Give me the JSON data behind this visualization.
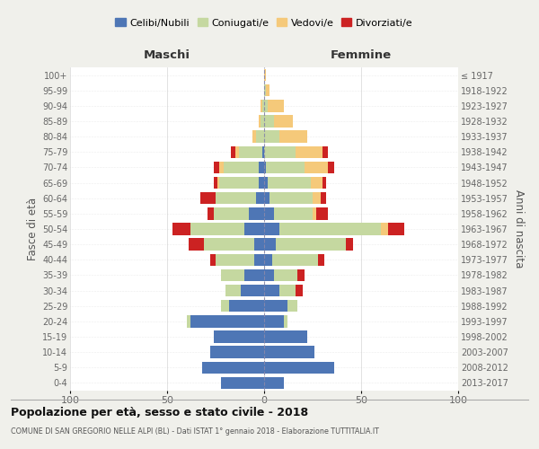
{
  "age_groups": [
    "0-4",
    "5-9",
    "10-14",
    "15-19",
    "20-24",
    "25-29",
    "30-34",
    "35-39",
    "40-44",
    "45-49",
    "50-54",
    "55-59",
    "60-64",
    "65-69",
    "70-74",
    "75-79",
    "80-84",
    "85-89",
    "90-94",
    "95-99",
    "100+"
  ],
  "birth_years": [
    "2013-2017",
    "2008-2012",
    "2003-2007",
    "1998-2002",
    "1993-1997",
    "1988-1992",
    "1983-1987",
    "1978-1982",
    "1973-1977",
    "1968-1972",
    "1963-1967",
    "1958-1962",
    "1953-1957",
    "1948-1952",
    "1943-1947",
    "1938-1942",
    "1933-1937",
    "1928-1932",
    "1923-1927",
    "1918-1922",
    "≤ 1917"
  ],
  "colors": {
    "celibi": "#4e76b5",
    "coniugati": "#c5d8a0",
    "vedovi": "#f5c97a",
    "divorziati": "#cc2222"
  },
  "males": {
    "celibi": [
      22,
      32,
      28,
      26,
      38,
      18,
      12,
      10,
      5,
      5,
      10,
      8,
      4,
      3,
      3,
      1,
      0,
      0,
      0,
      0,
      0
    ],
    "coniugati": [
      0,
      0,
      0,
      0,
      2,
      4,
      8,
      12,
      20,
      26,
      28,
      18,
      21,
      20,
      18,
      12,
      4,
      2,
      1,
      0,
      0
    ],
    "vedovi": [
      0,
      0,
      0,
      0,
      0,
      0,
      0,
      0,
      0,
      0,
      0,
      0,
      0,
      1,
      2,
      2,
      2,
      1,
      1,
      0,
      0
    ],
    "divorziati": [
      0,
      0,
      0,
      0,
      0,
      0,
      0,
      0,
      3,
      8,
      9,
      3,
      8,
      2,
      3,
      2,
      0,
      0,
      0,
      0,
      0
    ]
  },
  "females": {
    "celibi": [
      10,
      36,
      26,
      22,
      10,
      12,
      8,
      5,
      4,
      6,
      8,
      5,
      3,
      2,
      1,
      0,
      0,
      0,
      0,
      0,
      0
    ],
    "coniugati": [
      0,
      0,
      0,
      0,
      2,
      5,
      8,
      12,
      24,
      36,
      52,
      20,
      22,
      22,
      20,
      16,
      8,
      5,
      2,
      1,
      0
    ],
    "vedovi": [
      0,
      0,
      0,
      0,
      0,
      0,
      0,
      0,
      0,
      0,
      4,
      2,
      4,
      6,
      12,
      14,
      14,
      10,
      8,
      2,
      1
    ],
    "divorziati": [
      0,
      0,
      0,
      0,
      0,
      0,
      4,
      4,
      3,
      4,
      8,
      6,
      3,
      2,
      3,
      3,
      0,
      0,
      0,
      0,
      0
    ]
  },
  "title": "Popolazione per età, sesso e stato civile - 2018",
  "subtitle": "COMUNE DI SAN GREGORIO NELLE ALPI (BL) - Dati ISTAT 1° gennaio 2018 - Elaborazione TUTTITALIA.IT",
  "xlabel_left": "Maschi",
  "xlabel_right": "Femmine",
  "ylabel_left": "Fasce di età",
  "ylabel_right": "Anni di nascita",
  "xlim": 100,
  "legend_labels": [
    "Celibi/Nubili",
    "Coniugati/e",
    "Vedovi/e",
    "Divorziati/e"
  ],
  "bg_color": "#f0f0eb",
  "plot_bg_color": "#ffffff"
}
